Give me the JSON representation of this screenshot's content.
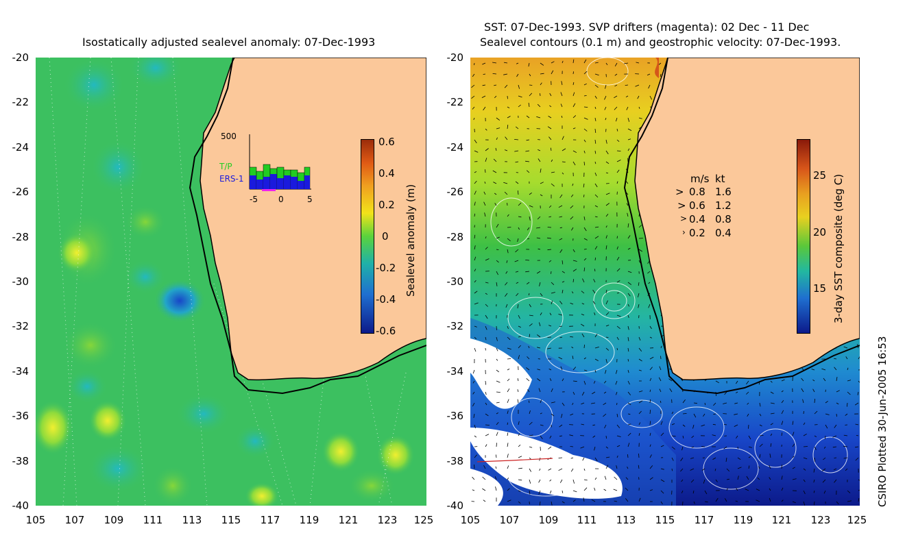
{
  "left_panel": {
    "title": "Isostatically adjusted sealevel anomaly: 07-Dec-1993",
    "colorbar": {
      "label": "Sealevel anomaly (m)",
      "ticks": [
        "0.6",
        "0.4",
        "0.2",
        "0",
        "-0.2",
        "-0.4",
        "-0.6"
      ],
      "colors": [
        "#9b2d0b",
        "#f0a020",
        "#f2e31a",
        "#5ad33c",
        "#1fb1a8",
        "#1f6fd0",
        "#0c1a8a"
      ]
    },
    "inset": {
      "ymax_label": "500",
      "tp_label": "T/P",
      "ers_label": "ERS-1",
      "x_ticks": [
        "-5",
        "0",
        "5"
      ],
      "tp_color": "#22cc22",
      "ers_color": "#1a1add"
    }
  },
  "right_panel": {
    "title_line1": "SST: 07-Dec-1993. SVP drifters (magenta): 02 Dec - 11 Dec",
    "title_line2": "Sealevel contours (0.1 m) and geostrophic velocity: 07-Dec-1993.",
    "colorbar": {
      "label": "3-day SST composite (deg C)",
      "ticks": [
        "25",
        "20",
        "15"
      ],
      "colors": [
        "#8a1a0a",
        "#e07a20",
        "#e8d020",
        "#5ac83a",
        "#22b8a0",
        "#1f6fd0",
        "#0c1a8a"
      ]
    },
    "velocity_legend": {
      "header_ms": "m/s",
      "header_kt": "kt",
      "rows": [
        {
          "ms": "0.8",
          "kt": "1.6"
        },
        {
          "ms": "0.6",
          "kt": "1.2"
        },
        {
          "ms": "0.4",
          "kt": "0.8"
        },
        {
          "ms": "0.2",
          "kt": "0.4"
        }
      ]
    }
  },
  "axes": {
    "y_ticks": [
      "-20",
      "-22",
      "-24",
      "-26",
      "-28",
      "-30",
      "-32",
      "-34",
      "-36",
      "-38",
      "-40"
    ],
    "x_ticks": [
      "105",
      "107",
      "109",
      "111",
      "113",
      "115",
      "117",
      "119",
      "121",
      "123",
      "125"
    ]
  },
  "footer": "CSIRO Plotted 30-Jun-2005 16:53",
  "colors": {
    "land": "#fbc89a",
    "ocean_mid": "#3cc060",
    "coastline": "#000000",
    "contour": "#ffffff"
  }
}
